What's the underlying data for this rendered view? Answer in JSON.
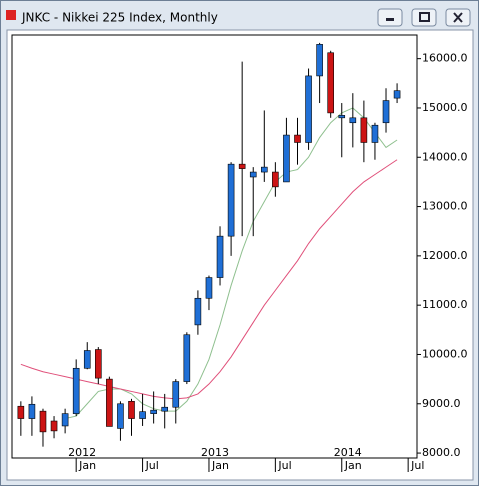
{
  "window_title": "JNKC - Nikkei 225 Index, Monthly",
  "chart_data": {
    "type": "candlestick",
    "open": [
      8950,
      8700,
      8850,
      8650,
      8550,
      8800,
      9720,
      10100,
      9500,
      8500,
      9050,
      8700,
      8800,
      8850,
      8930,
      9450,
      10600,
      11140,
      11560,
      12400,
      13860,
      13600,
      13700,
      13700,
      13500,
      14450,
      14300,
      15650,
      16120,
      14800,
      14700,
      14800,
      14300,
      14700,
      15200
    ],
    "high": [
      9050,
      9150,
      8900,
      8750,
      8900,
      9900,
      10250,
      10150,
      9550,
      9050,
      9100,
      9200,
      9250,
      9200,
      9500,
      10450,
      11300,
      11600,
      12600,
      13900,
      15940,
      13800,
      14950,
      13900,
      14800,
      14800,
      15800,
      16320,
      16160,
      15100,
      15300,
      15150,
      14700,
      15400,
      15500
    ],
    "low": [
      8350,
      8350,
      8130,
      8300,
      8400,
      8750,
      9700,
      9400,
      8550,
      8250,
      8350,
      8550,
      8600,
      8500,
      8600,
      9400,
      10400,
      10900,
      11400,
      12000,
      12400,
      12400,
      13500,
      13200,
      13500,
      13850,
      14150,
      15100,
      14800,
      14000,
      14200,
      13900,
      13950,
      14500,
      15100
    ],
    "close": [
      8700,
      8990,
      8430,
      8450,
      8800,
      9720,
      10080,
      9520,
      8540,
      9000,
      8700,
      8840,
      8870,
      8930,
      9450,
      10400,
      11140,
      11560,
      12400,
      13860,
      13770,
      13700,
      13800,
      13400,
      14450,
      14300,
      15650,
      16290,
      14900,
      14850,
      14800,
      14300,
      14650,
      15150,
      15350
    ],
    "up_color": "#1f6fd6",
    "down_color": "#cc1414",
    "moving_averages": [
      {
        "color": "#8fc08f",
        "values": [
          null,
          null,
          null,
          null,
          8700,
          8750,
          9000,
          9250,
          9300,
          9300,
          9200,
          9000,
          8900,
          8850,
          8850,
          9050,
          9400,
          9900,
          10600,
          11400,
          12100,
          12700,
          13100,
          13500,
          13700,
          13750,
          14000,
          14400,
          14700,
          14900,
          15000,
          14800,
          14500,
          14200,
          14350
        ]
      },
      {
        "color": "#e0507a",
        "values": [
          9800,
          9720,
          9650,
          9600,
          9550,
          9500,
          9450,
          9400,
          9350,
          9300,
          9250,
          9200,
          9150,
          9120,
          9100,
          9120,
          9200,
          9400,
          9650,
          9950,
          10300,
          10650,
          11000,
          11300,
          11600,
          11900,
          12250,
          12550,
          12800,
          13050,
          13300,
          13500,
          13650,
          13800,
          13950
        ]
      }
    ],
    "xlim": [
      -0.8,
      35.8
    ],
    "xticks": [
      {
        "value": 5,
        "label": "Jan"
      },
      {
        "value": 11,
        "label": "Jul"
      },
      {
        "value": 17,
        "label": "Jan"
      },
      {
        "value": 23,
        "label": "Jul"
      },
      {
        "value": 29,
        "label": "Jan"
      },
      {
        "value": 35,
        "label": "Jul"
      }
    ],
    "year_ticks": [
      {
        "value": 5,
        "label": "2012"
      },
      {
        "value": 17,
        "label": "2013"
      },
      {
        "value": 29,
        "label": "2014"
      }
    ],
    "ylim": [
      7900,
      16480
    ],
    "yticks": [
      {
        "value": 8000,
        "label": "8000.0"
      },
      {
        "value": 9000,
        "label": "9000.0"
      },
      {
        "value": 10000,
        "label": "10000.0"
      },
      {
        "value": 11000,
        "label": "11000.0"
      },
      {
        "value": 12000,
        "label": "12000.0"
      },
      {
        "value": 13000,
        "label": "13000.0"
      },
      {
        "value": 14000,
        "label": "14000.0"
      },
      {
        "value": 15000,
        "label": "15000.0"
      },
      {
        "value": 16000,
        "label": "16000.0"
      }
    ]
  }
}
